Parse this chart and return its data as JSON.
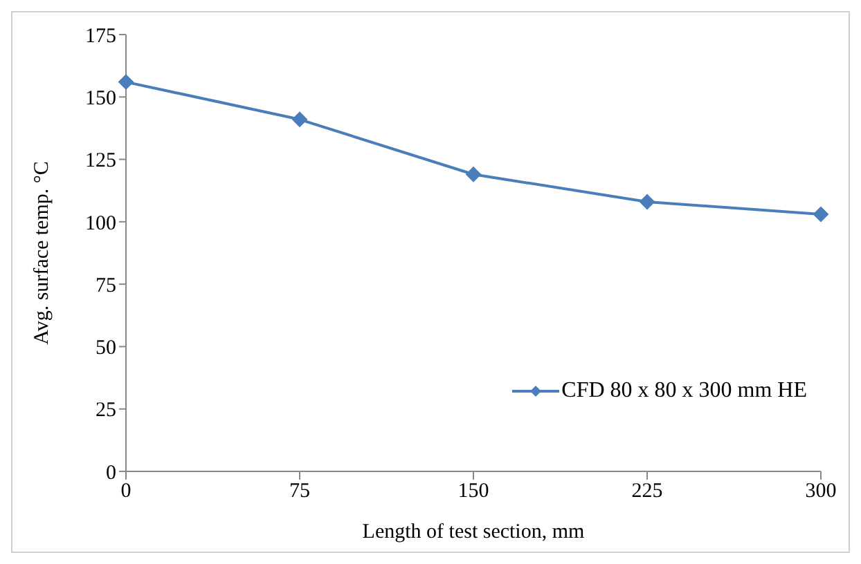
{
  "chart_data": {
    "type": "line",
    "xlabel": "Length  of test section, mm",
    "ylabel": "Avg.  surface  temp.  °C",
    "x": [
      0,
      75,
      150,
      225,
      300
    ],
    "series": [
      {
        "name": "CFD 80 x 80 x 300 mm HE",
        "color": "#4a7ebb",
        "values": [
          156,
          141,
          119,
          108,
          103
        ]
      }
    ],
    "xlim": [
      0,
      300
    ],
    "xticks": [
      0,
      75,
      150,
      225,
      300
    ],
    "ylim": [
      0,
      175
    ],
    "yticks": [
      0,
      25,
      50,
      75,
      100,
      125,
      150,
      175
    ],
    "grid": false,
    "legend": "bottom right",
    "marker": "diamond",
    "line_style": "solid"
  }
}
